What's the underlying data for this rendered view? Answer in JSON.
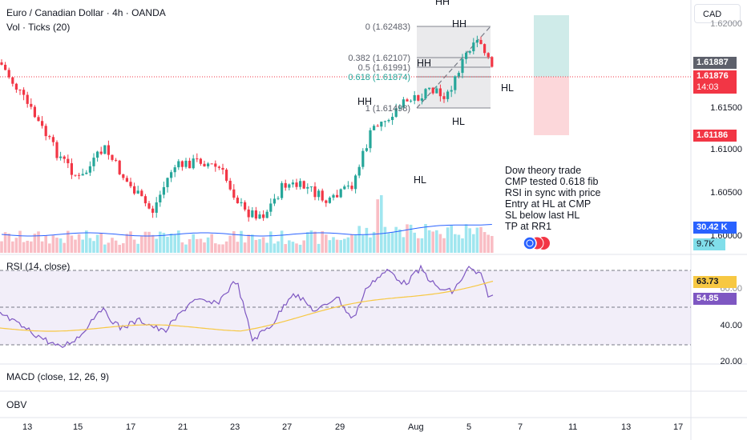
{
  "header": {
    "symbol_title": "Euro / Canadian Dollar · 4h · OANDA",
    "volume_legend": "Vol · Ticks (20)",
    "currency": "CAD"
  },
  "price_scale": {
    "tick_labels": [
      "1.61500",
      "1.61000",
      "1.60500",
      "1.60000",
      "1.62000"
    ],
    "last_price": "1.61887",
    "current_price": "1.61876",
    "countdown": "14:03",
    "stop_price": "1.61186",
    "colors": {
      "up": "#26a69a",
      "down": "#f23645",
      "dark": "#5d606b"
    }
  },
  "fib": {
    "level_0": "0 (1.62483)",
    "level_382": "0.382 (1.62107)",
    "level_5": "0.5 (1.61991)",
    "level_618": "0.618 (1.61874)",
    "level_1": "1 (1.61498)"
  },
  "structure_labels": {
    "hh_top": "HH",
    "hh_right": "HH",
    "hh_mid": "HH",
    "hh_left": "HH",
    "hl_right": "HL",
    "hl_box": "HL",
    "hl_bottom": "HL"
  },
  "note": {
    "lines": [
      "Dow theory trade",
      "CMP tested 0.618 fib",
      "RSI in sync with price",
      "Entry at HL at CMP",
      "SL below last HL",
      "TP at RR1"
    ]
  },
  "volume": {
    "value": "30.42 K",
    "ma_value": "9.7K"
  },
  "rsi": {
    "legend": "RSI (14, close)",
    "tick_labels": [
      "40.00",
      "20.00",
      "60.00"
    ],
    "value": "63.73",
    "ma_value": "54.85"
  },
  "macd": {
    "legend": "MACD (close, 12, 26, 9)"
  },
  "obv": {
    "legend": "OBV"
  },
  "time_axis": {
    "labels": [
      "13",
      "15",
      "17",
      "21",
      "23",
      "27",
      "29",
      "Aug",
      "5",
      "7",
      "11",
      "13",
      "17"
    ]
  }
}
